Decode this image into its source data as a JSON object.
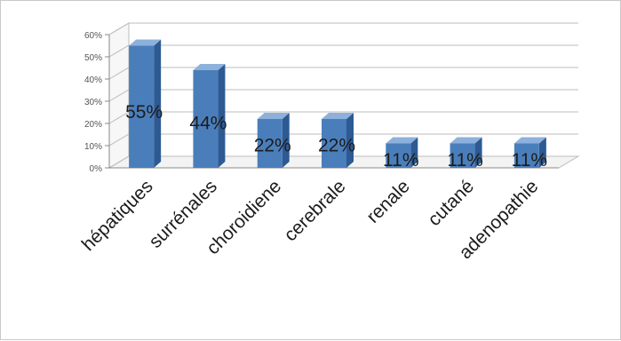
{
  "chart_data": {
    "type": "bar",
    "title": "",
    "xlabel": "",
    "ylabel": "",
    "ylim": [
      0,
      60
    ],
    "y_ticks": [
      "0%",
      "10%",
      "20%",
      "30%",
      "40%",
      "50%",
      "60%"
    ],
    "categories": [
      "hépatiques",
      "surrénales",
      "choroidiene",
      "cerebrale",
      "renale",
      "cutané",
      "adenopathie"
    ],
    "values": [
      55,
      44,
      22,
      22,
      11,
      11,
      11
    ],
    "data_labels": [
      "55%",
      "44%",
      "22%",
      "22%",
      "11%",
      "11%",
      "11%"
    ],
    "grid": true,
    "legend": "none",
    "style": "3d-column",
    "colors": {
      "bar_front": "#4a7ebb",
      "bar_top": "#8eb1dc",
      "bar_side": "#2d5a93",
      "grid": "#bdbdbd"
    }
  }
}
